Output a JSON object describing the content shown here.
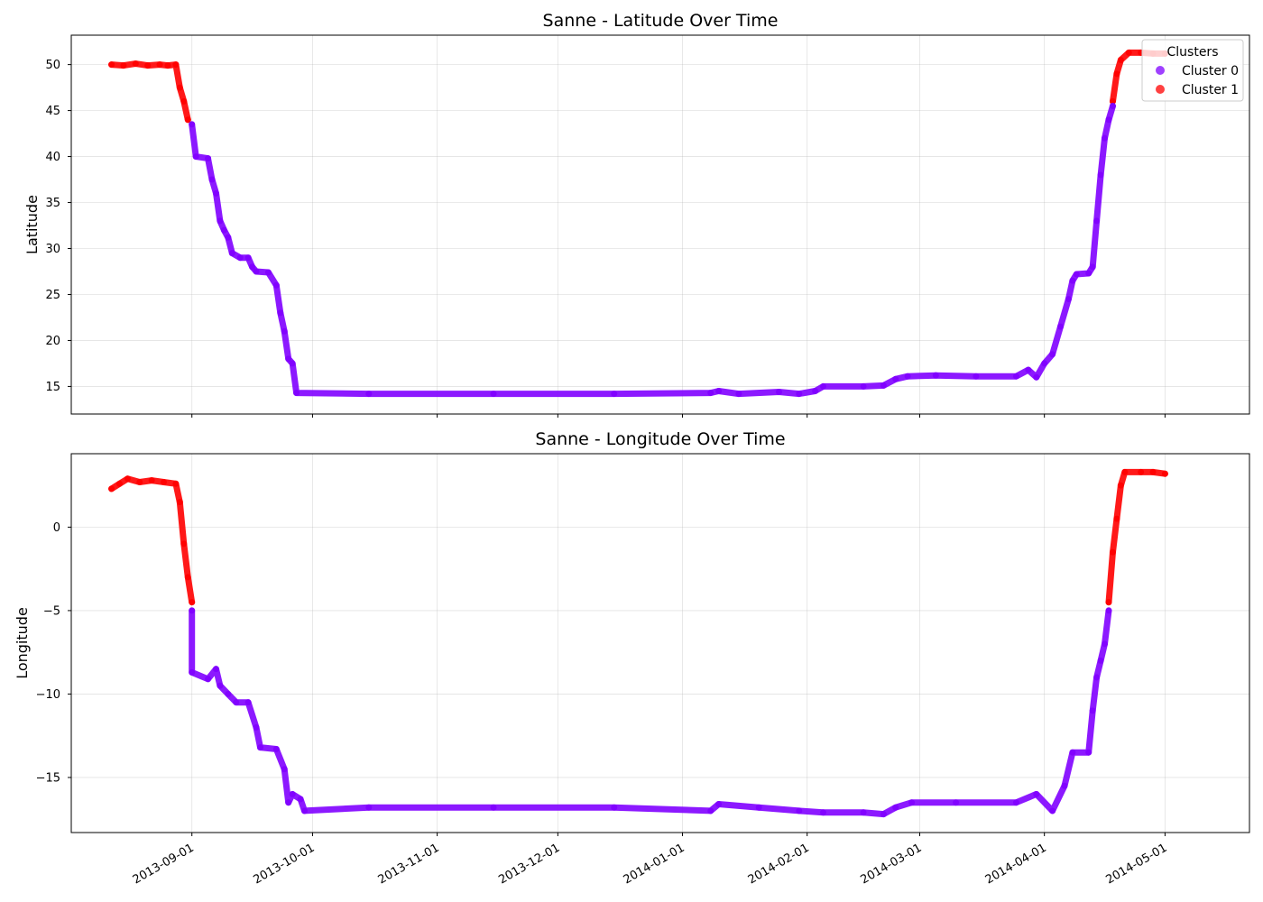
{
  "chart_data": [
    {
      "type": "scatter",
      "title": "Sanne - Latitude Over Time",
      "xlabel": "",
      "ylabel": "Latitude",
      "xlim": [
        "2013-08-02",
        "2014-05-22"
      ],
      "ylim": [
        12,
        53.2
      ],
      "yticks": [
        15,
        20,
        25,
        30,
        35,
        40,
        45,
        50
      ],
      "xticks": [
        "2013-09-01",
        "2013-10-01",
        "2013-11-01",
        "2013-12-01",
        "2014-01-01",
        "2014-02-01",
        "2014-03-01",
        "2014-04-01",
        "2014-05-01"
      ],
      "grid": true,
      "legend": {
        "title": "Clusters",
        "position": "top-right",
        "entries": [
          "Cluster 0",
          "Cluster 1"
        ]
      },
      "series": [
        {
          "name": "Cluster 1",
          "color": "#ff0000",
          "points": [
            [
              "2013-08-12",
              50.0
            ],
            [
              "2013-08-15",
              49.9
            ],
            [
              "2013-08-18",
              50.1
            ],
            [
              "2013-08-21",
              49.9
            ],
            [
              "2013-08-24",
              50.0
            ],
            [
              "2013-08-26",
              49.9
            ],
            [
              "2013-08-28",
              50.0
            ],
            [
              "2013-08-29",
              47.5
            ],
            [
              "2013-08-30",
              46.0
            ],
            [
              "2013-08-31",
              44.0
            ],
            [
              "2014-04-18",
              46.0
            ],
            [
              "2014-04-19",
              49.0
            ],
            [
              "2014-04-20",
              50.5
            ],
            [
              "2014-04-22",
              51.3
            ],
            [
              "2014-04-25",
              51.3
            ],
            [
              "2014-04-28",
              51.2
            ],
            [
              "2014-05-01",
              51.2
            ]
          ]
        },
        {
          "name": "Cluster 0",
          "color": "#7f00ff",
          "points": [
            [
              "2013-09-01",
              43.5
            ],
            [
              "2013-09-02",
              40.0
            ],
            [
              "2013-09-05",
              39.8
            ],
            [
              "2013-09-06",
              37.5
            ],
            [
              "2013-09-07",
              36.0
            ],
            [
              "2013-09-08",
              33.0
            ],
            [
              "2013-09-09",
              32.0
            ],
            [
              "2013-09-10",
              31.2
            ],
            [
              "2013-09-11",
              29.5
            ],
            [
              "2013-09-13",
              29.0
            ],
            [
              "2013-09-15",
              29.0
            ],
            [
              "2013-09-16",
              28.0
            ],
            [
              "2013-09-17",
              27.5
            ],
            [
              "2013-09-20",
              27.4
            ],
            [
              "2013-09-22",
              26.0
            ],
            [
              "2013-09-23",
              23.0
            ],
            [
              "2013-09-24",
              21.0
            ],
            [
              "2013-09-25",
              18.0
            ],
            [
              "2013-09-26",
              17.5
            ],
            [
              "2013-09-27",
              14.3
            ],
            [
              "2013-10-15",
              14.2
            ],
            [
              "2013-11-15",
              14.2
            ],
            [
              "2013-12-15",
              14.2
            ],
            [
              "2014-01-08",
              14.3
            ],
            [
              "2014-01-10",
              14.5
            ],
            [
              "2014-01-15",
              14.2
            ],
            [
              "2014-01-25",
              14.4
            ],
            [
              "2014-01-30",
              14.2
            ],
            [
              "2014-02-03",
              14.5
            ],
            [
              "2014-02-05",
              15.0
            ],
            [
              "2014-02-15",
              15.0
            ],
            [
              "2014-02-20",
              15.1
            ],
            [
              "2014-02-23",
              15.8
            ],
            [
              "2014-02-26",
              16.1
            ],
            [
              "2014-03-05",
              16.2
            ],
            [
              "2014-03-15",
              16.1
            ],
            [
              "2014-03-25",
              16.1
            ],
            [
              "2014-03-28",
              16.8
            ],
            [
              "2014-03-30",
              16.0
            ],
            [
              "2014-04-01",
              17.5
            ],
            [
              "2014-04-03",
              18.5
            ],
            [
              "2014-04-05",
              21.5
            ],
            [
              "2014-04-07",
              24.5
            ],
            [
              "2014-04-08",
              26.5
            ],
            [
              "2014-04-09",
              27.2
            ],
            [
              "2014-04-12",
              27.3
            ],
            [
              "2014-04-13",
              28.0
            ],
            [
              "2014-04-14",
              33.0
            ],
            [
              "2014-04-15",
              38.0
            ],
            [
              "2014-04-16",
              42.0
            ],
            [
              "2014-04-17",
              44.0
            ],
            [
              "2014-04-18",
              45.5
            ]
          ]
        }
      ]
    },
    {
      "type": "scatter",
      "title": "Sanne - Longitude Over Time",
      "xlabel": "",
      "ylabel": "Longitude",
      "xlim": [
        "2013-08-02",
        "2014-05-22"
      ],
      "ylim": [
        -18.3,
        4.4
      ],
      "yticks": [
        -15,
        -10,
        -5,
        0
      ],
      "xticks": [
        "2013-09-01",
        "2013-10-01",
        "2013-11-01",
        "2013-12-01",
        "2014-01-01",
        "2014-02-01",
        "2014-03-01",
        "2014-04-01",
        "2014-05-01"
      ],
      "grid": true,
      "series": [
        {
          "name": "Cluster 1",
          "color": "#ff0000",
          "points": [
            [
              "2013-08-12",
              2.3
            ],
            [
              "2013-08-14",
              2.6
            ],
            [
              "2013-08-16",
              2.9
            ],
            [
              "2013-08-19",
              2.7
            ],
            [
              "2013-08-22",
              2.8
            ],
            [
              "2013-08-25",
              2.7
            ],
            [
              "2013-08-28",
              2.6
            ],
            [
              "2013-08-29",
              1.5
            ],
            [
              "2013-08-30",
              -1.0
            ],
            [
              "2013-08-31",
              -3.0
            ],
            [
              "2013-09-01",
              -4.5
            ],
            [
              "2014-04-17",
              -4.5
            ],
            [
              "2014-04-18",
              -1.5
            ],
            [
              "2014-04-19",
              0.5
            ],
            [
              "2014-04-20",
              2.5
            ],
            [
              "2014-04-21",
              3.3
            ],
            [
              "2014-04-25",
              3.3
            ],
            [
              "2014-04-28",
              3.3
            ],
            [
              "2014-05-01",
              3.2
            ]
          ]
        },
        {
          "name": "Cluster 0",
          "color": "#7f00ff",
          "points": [
            [
              "2013-09-01",
              -5.0
            ],
            [
              "2013-09-01",
              -8.7
            ],
            [
              "2013-09-05",
              -9.1
            ],
            [
              "2013-09-07",
              -8.5
            ],
            [
              "2013-09-08",
              -9.5
            ],
            [
              "2013-09-10",
              -10.0
            ],
            [
              "2013-09-12",
              -10.5
            ],
            [
              "2013-09-15",
              -10.5
            ],
            [
              "2013-09-17",
              -12.0
            ],
            [
              "2013-09-18",
              -13.2
            ],
            [
              "2013-09-22",
              -13.3
            ],
            [
              "2013-09-24",
              -14.5
            ],
            [
              "2013-09-25",
              -16.5
            ],
            [
              "2013-09-26",
              -16.0
            ],
            [
              "2013-09-28",
              -16.3
            ],
            [
              "2013-09-29",
              -17.0
            ],
            [
              "2013-10-15",
              -16.8
            ],
            [
              "2013-11-15",
              -16.8
            ],
            [
              "2013-12-15",
              -16.8
            ],
            [
              "2014-01-08",
              -17.0
            ],
            [
              "2014-01-10",
              -16.6
            ],
            [
              "2014-01-20",
              -16.8
            ],
            [
              "2014-01-30",
              -17.0
            ],
            [
              "2014-02-05",
              -17.1
            ],
            [
              "2014-02-15",
              -17.1
            ],
            [
              "2014-02-20",
              -17.2
            ],
            [
              "2014-02-23",
              -16.8
            ],
            [
              "2014-02-27",
              -16.5
            ],
            [
              "2014-03-10",
              -16.5
            ],
            [
              "2014-03-25",
              -16.5
            ],
            [
              "2014-03-30",
              -16.0
            ],
            [
              "2014-04-03",
              -17.0
            ],
            [
              "2014-04-06",
              -15.5
            ],
            [
              "2014-04-08",
              -13.5
            ],
            [
              "2014-04-12",
              -13.5
            ],
            [
              "2014-04-13",
              -11.0
            ],
            [
              "2014-04-14",
              -9.0
            ],
            [
              "2014-04-15",
              -8.0
            ],
            [
              "2014-04-16",
              -7.0
            ],
            [
              "2014-04-17",
              -5.0
            ]
          ]
        }
      ]
    }
  ]
}
